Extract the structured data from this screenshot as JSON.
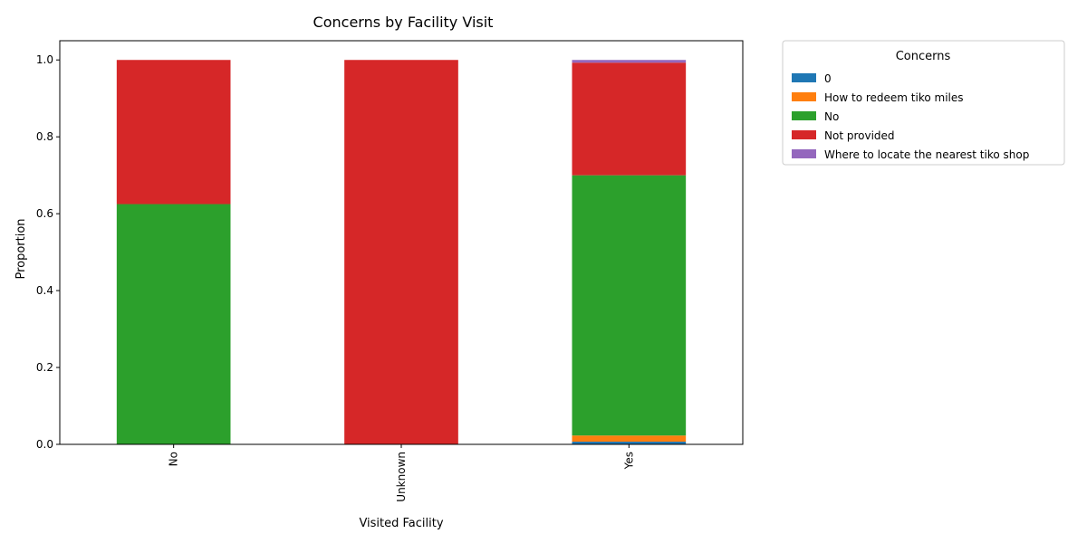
{
  "chart_data": {
    "type": "bar",
    "stacked": true,
    "title": "Concerns by Facility Visit",
    "xlabel": "Visited Facility",
    "ylabel": "Proportion",
    "categories": [
      "No",
      "Unknown",
      "Yes"
    ],
    "ylim": [
      0,
      1.05
    ],
    "yticks": [
      "0.0",
      "0.2",
      "0.4",
      "0.6",
      "0.8",
      "1.0"
    ],
    "legend_title": "Concerns",
    "legend_position": "outside-top-right",
    "grid": false,
    "series": [
      {
        "name": "0",
        "color": "#1f77b4",
        "values": [
          0,
          0,
          0.007
        ]
      },
      {
        "name": "How to redeem tiko miles",
        "color": "#ff7f0e",
        "values": [
          0,
          0,
          0.016
        ]
      },
      {
        "name": "No",
        "color": "#2ca02c",
        "values": [
          0.625,
          0,
          0.677
        ]
      },
      {
        "name": "Not provided",
        "color": "#d62728",
        "values": [
          0.375,
          1.0,
          0.293
        ]
      },
      {
        "name": "Where to locate the nearest tiko shop",
        "color": "#9467bd",
        "values": [
          0,
          0,
          0.007
        ]
      }
    ]
  }
}
